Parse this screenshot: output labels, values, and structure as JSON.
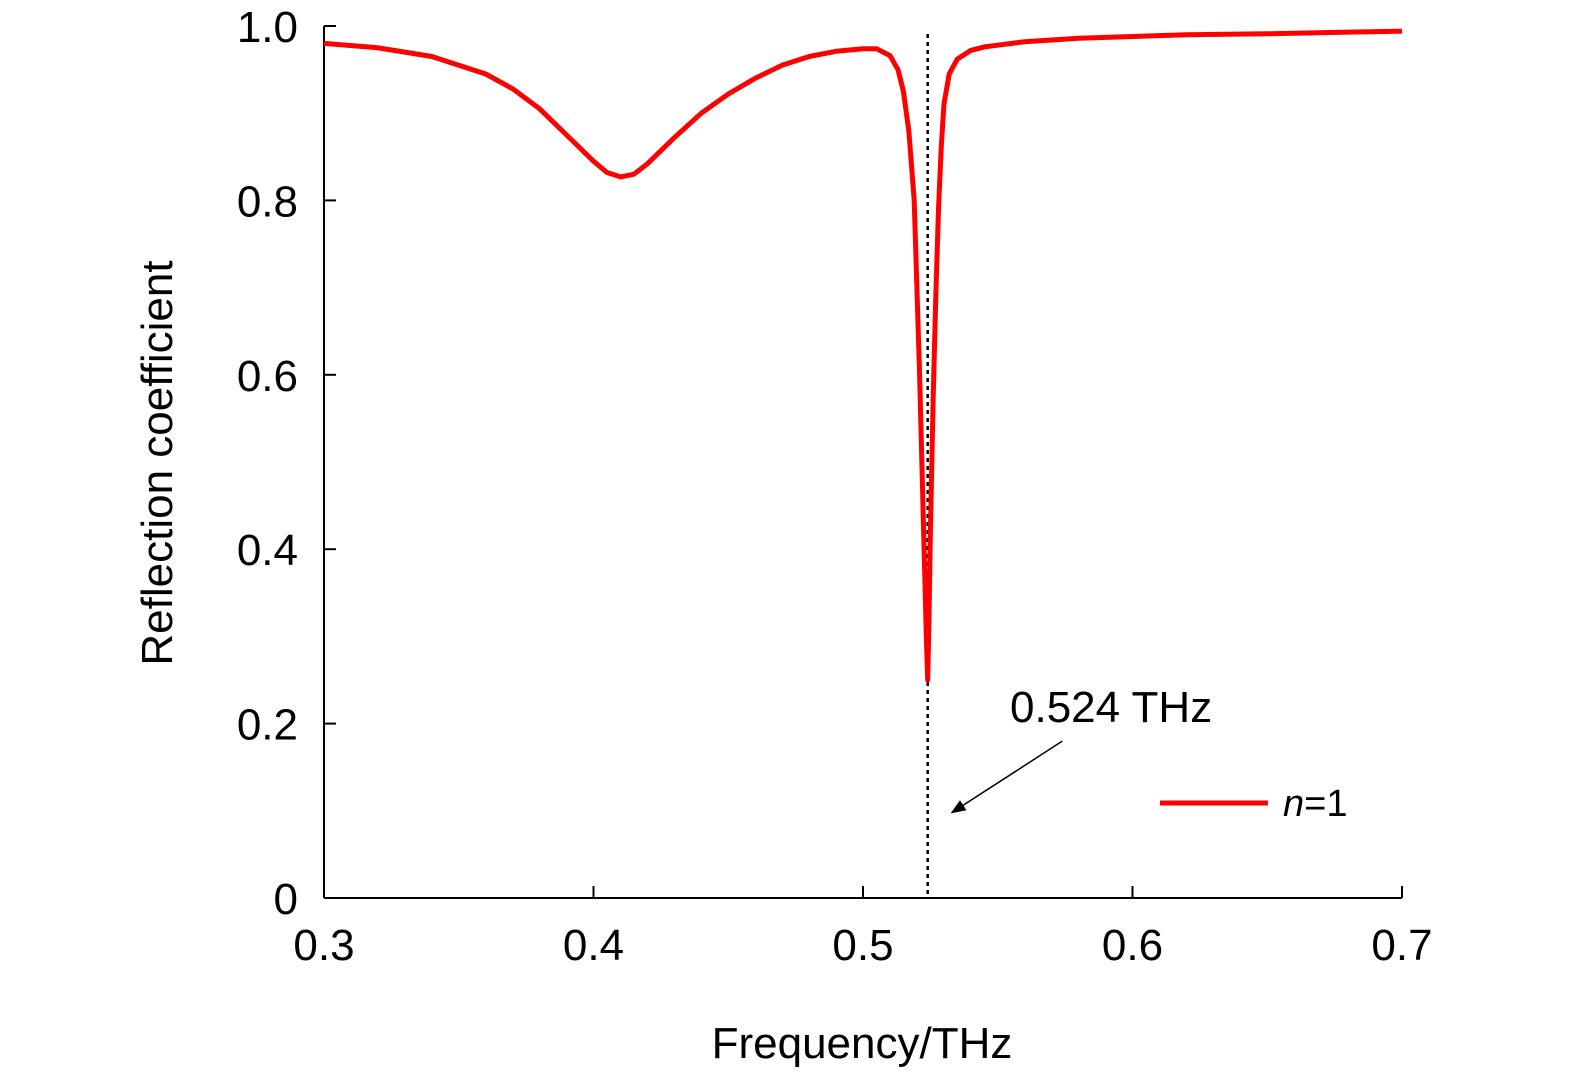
{
  "chart_data": {
    "type": "line",
    "title": "",
    "xlabel": "Frequency/THz",
    "ylabel": "Reflection coefficient",
    "xlim": [
      0.3,
      0.7
    ],
    "ylim": [
      0,
      1.0
    ],
    "xticks": [
      0.3,
      0.4,
      0.5,
      0.6,
      0.7
    ],
    "xtick_labels": [
      "0.3",
      "0.4",
      "0.5",
      "0.6",
      "0.7"
    ],
    "yticks": [
      0,
      0.2,
      0.4,
      0.6,
      0.8,
      1.0
    ],
    "ytick_labels": [
      "0",
      "0.2",
      "0.4",
      "0.6",
      "0.8",
      "1.0"
    ],
    "grid": false,
    "legend_position": "bottom-right",
    "series": [
      {
        "name_prefix": "n",
        "name_suffix": "=1",
        "color": "#ff0000",
        "x": [
          0.3,
          0.32,
          0.34,
          0.36,
          0.37,
          0.38,
          0.39,
          0.4,
          0.405,
          0.41,
          0.415,
          0.42,
          0.43,
          0.44,
          0.45,
          0.46,
          0.47,
          0.48,
          0.49,
          0.5,
          0.505,
          0.51,
          0.513,
          0.515,
          0.517,
          0.519,
          0.52,
          0.521,
          0.522,
          0.523,
          0.5235,
          0.524,
          0.5245,
          0.525,
          0.526,
          0.527,
          0.528,
          0.529,
          0.53,
          0.532,
          0.535,
          0.54,
          0.545,
          0.55,
          0.56,
          0.58,
          0.6,
          0.62,
          0.65,
          0.68,
          0.7
        ],
        "y": [
          0.98,
          0.975,
          0.965,
          0.945,
          0.928,
          0.905,
          0.875,
          0.845,
          0.832,
          0.827,
          0.83,
          0.842,
          0.872,
          0.9,
          0.922,
          0.94,
          0.955,
          0.965,
          0.971,
          0.974,
          0.974,
          0.966,
          0.95,
          0.925,
          0.88,
          0.8,
          0.7,
          0.6,
          0.48,
          0.36,
          0.3,
          0.25,
          0.32,
          0.42,
          0.57,
          0.69,
          0.79,
          0.86,
          0.91,
          0.945,
          0.962,
          0.972,
          0.976,
          0.978,
          0.982,
          0.986,
          0.988,
          0.99,
          0.991,
          0.993,
          0.994
        ]
      }
    ],
    "marker_line": {
      "x": 0.524,
      "style": "dotted",
      "color": "#000000"
    },
    "annotation": {
      "text": "0.524 THz",
      "arrow_from": [
        0.574,
        0.18
      ],
      "arrow_to": [
        0.533,
        0.098
      ]
    }
  }
}
